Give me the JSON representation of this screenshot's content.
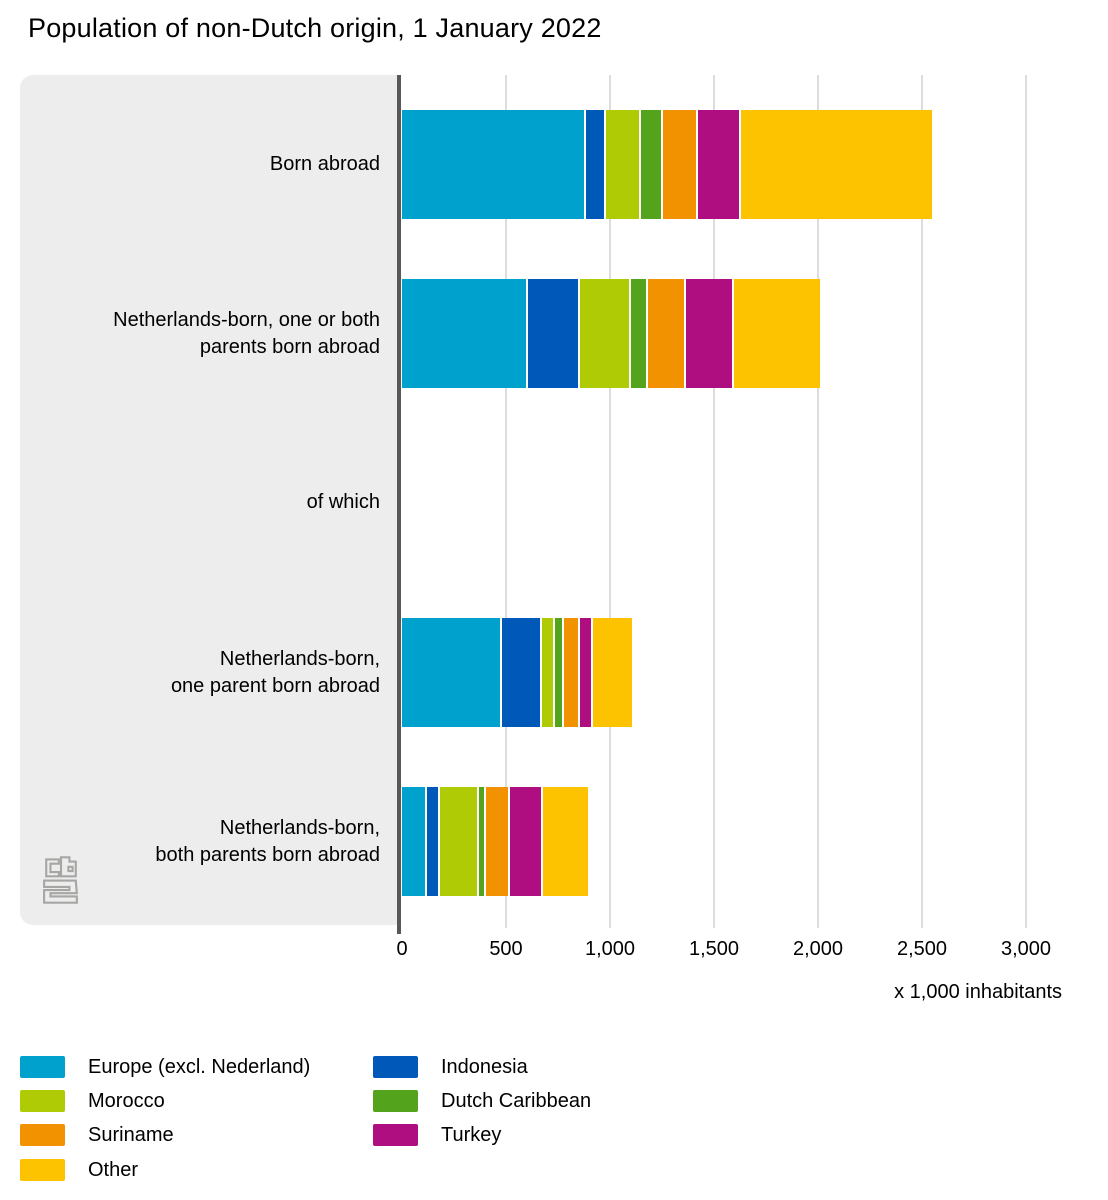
{
  "title": "Population of non-Dutch origin, 1 January 2022",
  "chart_data": {
    "type": "bar",
    "orientation": "horizontal",
    "stacked": true,
    "title": "Population of non-Dutch origin, 1 January 2022",
    "xlabel": "x 1,000 inhabitants",
    "ylabel": "",
    "xlim": [
      0,
      3000
    ],
    "grid": "vertical-only",
    "x_ticks": [
      {
        "value": 0,
        "label": "0"
      },
      {
        "value": 500,
        "label": "500"
      },
      {
        "value": 1000,
        "label": "1,000"
      },
      {
        "value": 1500,
        "label": "1,500"
      },
      {
        "value": 2000,
        "label": "2,000"
      },
      {
        "value": 2500,
        "label": "2,500"
      },
      {
        "value": 3000,
        "label": "3,000"
      }
    ],
    "categories": [
      {
        "lines": [
          "Born abroad"
        ],
        "has_bar": true
      },
      {
        "lines": [
          "Netherlands-born, one or both",
          "parents born abroad"
        ],
        "has_bar": true
      },
      {
        "lines": [
          "of which"
        ],
        "has_bar": false
      },
      {
        "lines": [
          "Netherlands-born,",
          "one parent born abroad"
        ],
        "has_bar": true
      },
      {
        "lines": [
          "Netherlands-born,",
          "both parents born abroad"
        ],
        "has_bar": true
      }
    ],
    "series": [
      {
        "name": "Europe (excl. Nederland)",
        "color": "#00A1CD",
        "values": [
          875,
          595,
          null,
          470,
          110
        ]
      },
      {
        "name": "Indonesia",
        "color": "#0058B8",
        "values": [
          95,
          250,
          null,
          195,
          65
        ]
      },
      {
        "name": "Morocco",
        "color": "#AFCB05",
        "values": [
          170,
          245,
          null,
          60,
          185
        ]
      },
      {
        "name": "Dutch Caribbean",
        "color": "#53A31D",
        "values": [
          105,
          85,
          null,
          45,
          35
        ]
      },
      {
        "name": "Suriname",
        "color": "#F39200",
        "values": [
          170,
          180,
          null,
          75,
          115
        ]
      },
      {
        "name": "Turkey",
        "color": "#AF0E80",
        "values": [
          205,
          230,
          null,
          65,
          160
        ]
      },
      {
        "name": "Other",
        "color": "#FDC300",
        "values": [
          930,
          425,
          null,
          195,
          225
        ]
      }
    ],
    "category_totals": [
      2550,
      2010,
      null,
      1105,
      895
    ]
  },
  "axis": {
    "unit_label": "x 1,000 inhabitants"
  },
  "legend": {
    "position": "bottom",
    "columns": [
      [
        "Europe (excl. Nederland)",
        "Morocco",
        "Suriname",
        "Other"
      ],
      [
        "Indonesia",
        "Dutch Caribbean",
        "Turkey"
      ]
    ]
  },
  "branding": {
    "logo": "CBS (Statistics Netherlands)"
  }
}
